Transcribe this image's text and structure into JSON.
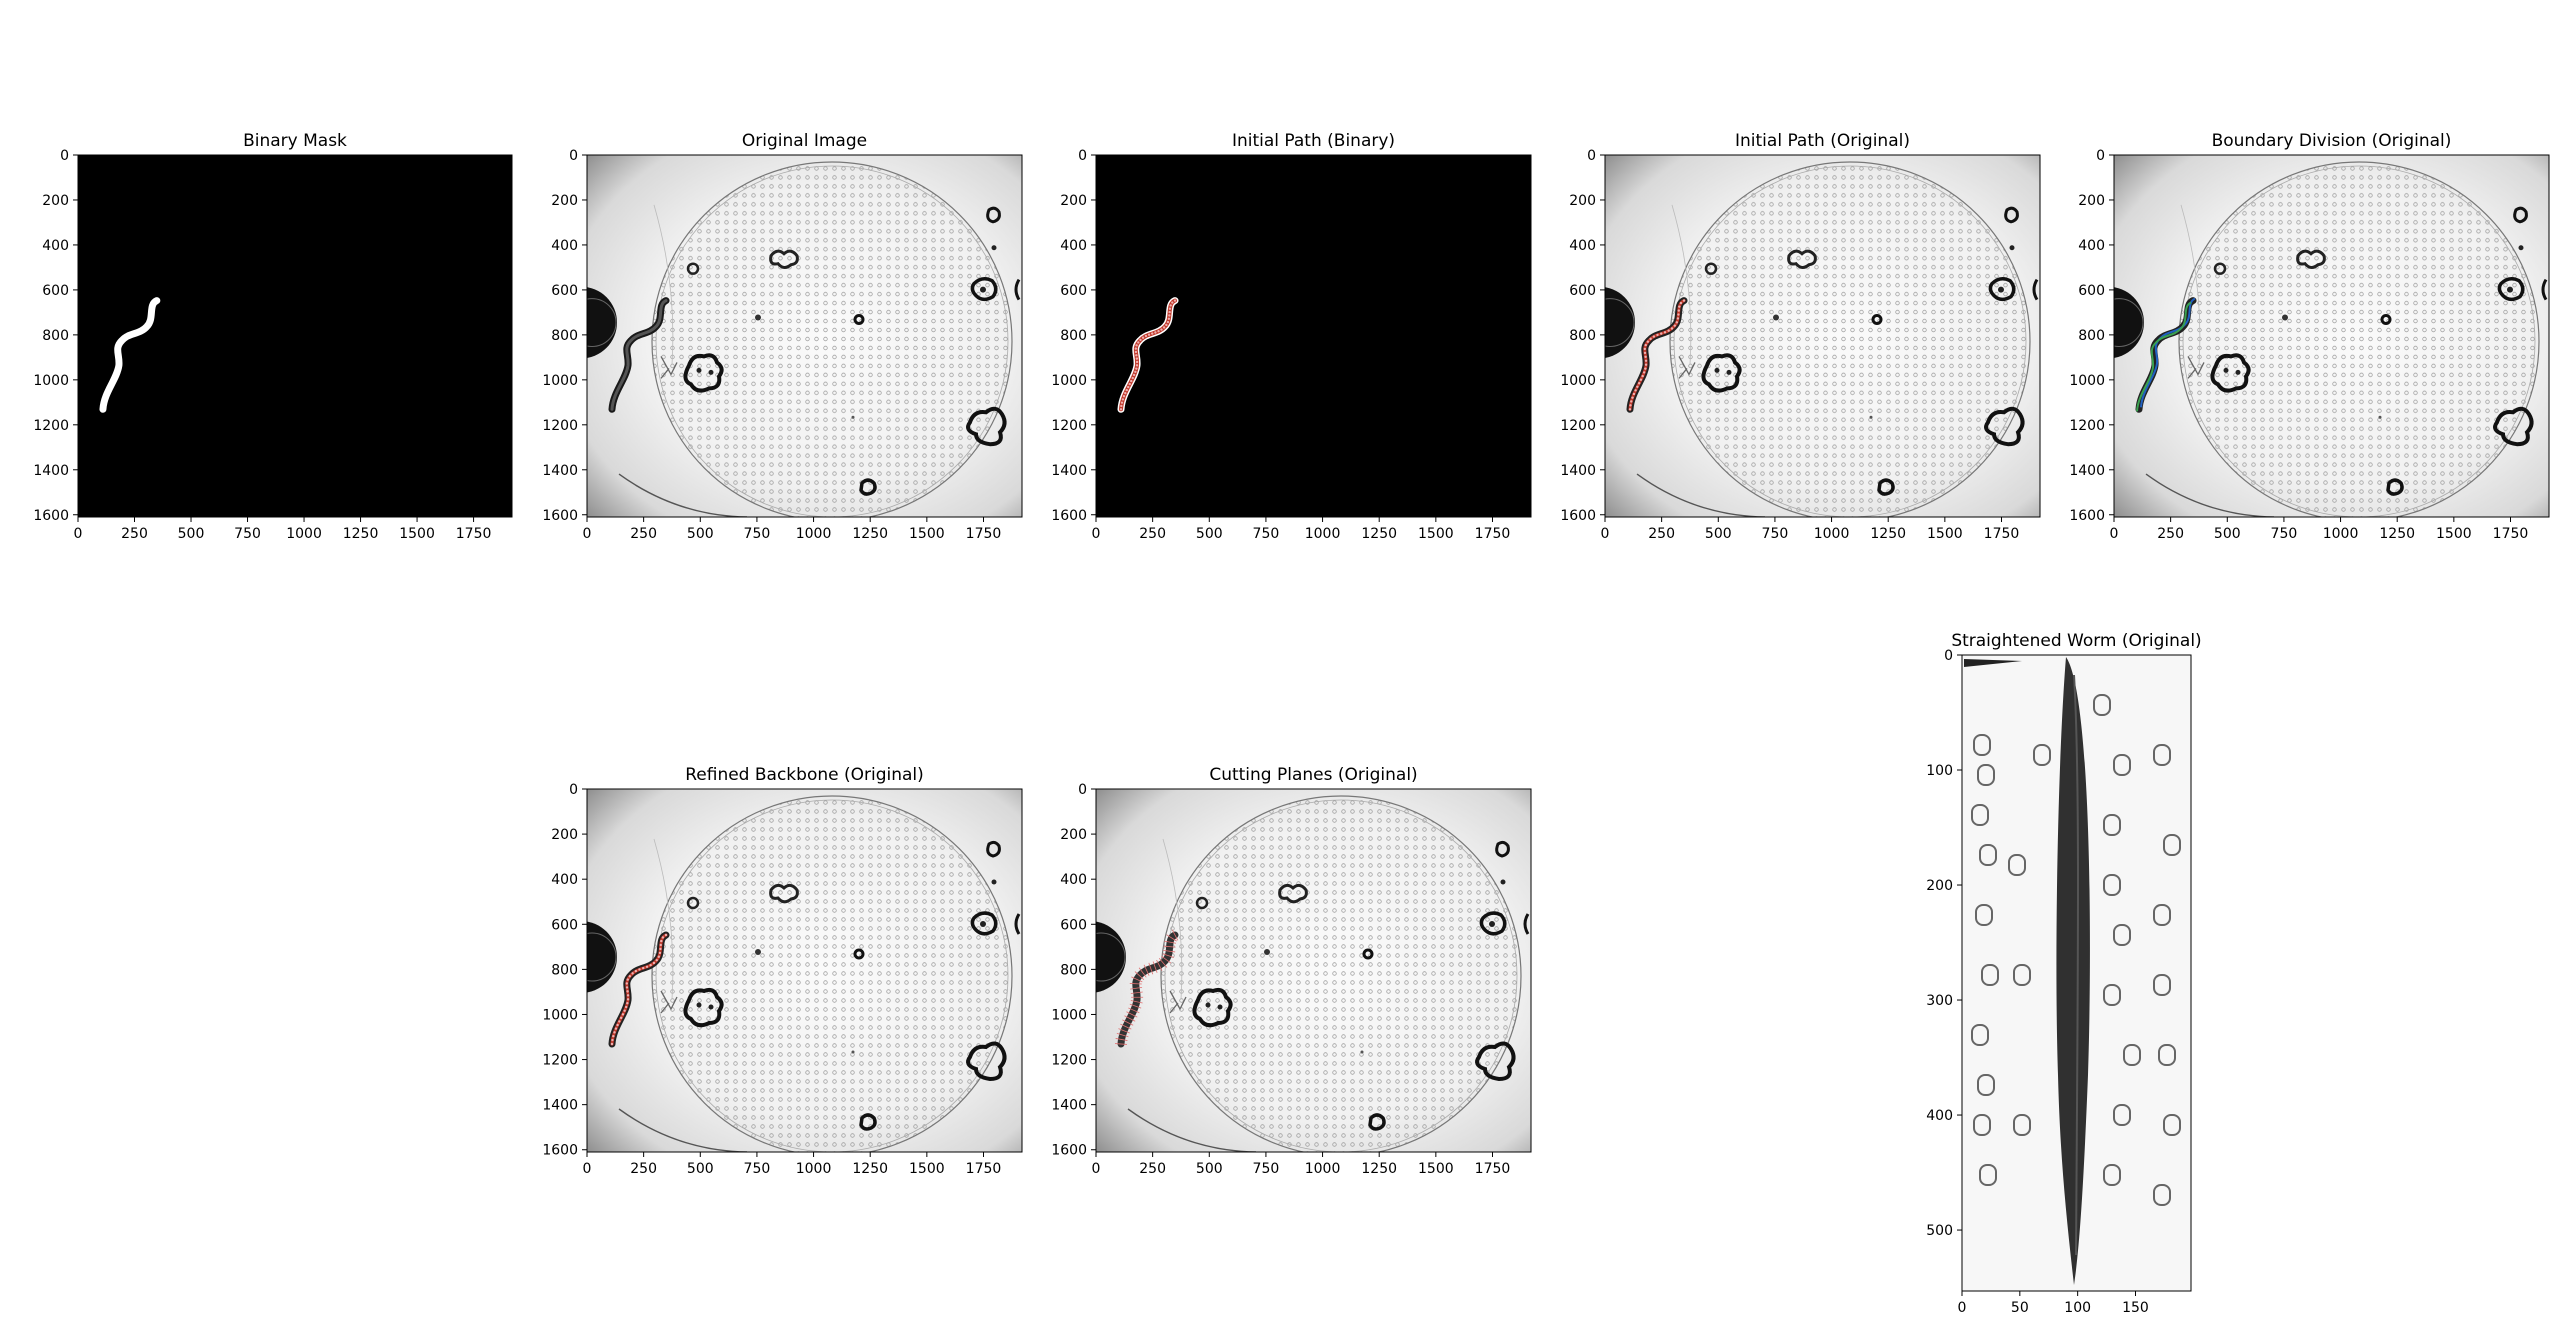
{
  "colors": {
    "background": "#ffffff",
    "mask_bg": "#000000",
    "mask_fg": "#ffffff",
    "plate_bg": "#f3f3f3",
    "plate_vignette": "#8a8a8a",
    "path_red": "#c0392b",
    "path_dots": "#f0b0b0",
    "boundary_blue": "#2060c0",
    "boundary_green": "#3aa050",
    "worm_dark": "#1a1a1a"
  },
  "chart_data": [
    {
      "type": "image",
      "title": "Binary Mask",
      "content": "binary-mask",
      "xticks": [
        "0",
        "250",
        "500",
        "750",
        "1000",
        "1250",
        "1500",
        "1750"
      ],
      "xtick_values": [
        0,
        250,
        500,
        750,
        1000,
        1250,
        1500,
        1750
      ],
      "yticks": [
        "0",
        "200",
        "400",
        "600",
        "800",
        "1000",
        "1200",
        "1400",
        "1600"
      ],
      "ytick_values": [
        0,
        200,
        400,
        600,
        800,
        1000,
        1200,
        1400,
        1600
      ],
      "xlim": [
        0,
        1920
      ],
      "ylim": [
        1610,
        0
      ]
    },
    {
      "type": "image",
      "title": "Original Image",
      "content": "plate",
      "xticks": [
        "0",
        "250",
        "500",
        "750",
        "1000",
        "1250",
        "1500",
        "1750"
      ],
      "xtick_values": [
        0,
        250,
        500,
        750,
        1000,
        1250,
        1500,
        1750
      ],
      "yticks": [
        "0",
        "200",
        "400",
        "600",
        "800",
        "1000",
        "1200",
        "1400",
        "1600"
      ],
      "ytick_values": [
        0,
        200,
        400,
        600,
        800,
        1000,
        1200,
        1400,
        1600
      ],
      "xlim": [
        0,
        1920
      ],
      "ylim": [
        1610,
        0
      ]
    },
    {
      "type": "image",
      "title": "Initial Path (Binary)",
      "content": "binary-path",
      "xticks": [
        "0",
        "250",
        "500",
        "750",
        "1000",
        "1250",
        "1500",
        "1750"
      ],
      "xtick_values": [
        0,
        250,
        500,
        750,
        1000,
        1250,
        1500,
        1750
      ],
      "yticks": [
        "0",
        "200",
        "400",
        "600",
        "800",
        "1000",
        "1200",
        "1400",
        "1600"
      ],
      "ytick_values": [
        0,
        200,
        400,
        600,
        800,
        1000,
        1200,
        1400,
        1600
      ],
      "xlim": [
        0,
        1920
      ],
      "ylim": [
        1610,
        0
      ]
    },
    {
      "type": "image",
      "title": "Initial Path (Original)",
      "content": "plate-path",
      "xticks": [
        "0",
        "250",
        "500",
        "750",
        "1000",
        "1250",
        "1500",
        "1750"
      ],
      "xtick_values": [
        0,
        250,
        500,
        750,
        1000,
        1250,
        1500,
        1750
      ],
      "yticks": [
        "0",
        "200",
        "400",
        "600",
        "800",
        "1000",
        "1200",
        "1400",
        "1600"
      ],
      "ytick_values": [
        0,
        200,
        400,
        600,
        800,
        1000,
        1200,
        1400,
        1600
      ],
      "xlim": [
        0,
        1920
      ],
      "ylim": [
        1610,
        0
      ]
    },
    {
      "type": "image",
      "title": "Boundary Division (Original)",
      "content": "plate-boundary",
      "xticks": [
        "0",
        "250",
        "500",
        "750",
        "1000",
        "1250",
        "1500",
        "1750"
      ],
      "xtick_values": [
        0,
        250,
        500,
        750,
        1000,
        1250,
        1500,
        1750
      ],
      "yticks": [
        "0",
        "200",
        "400",
        "600",
        "800",
        "1000",
        "1200",
        "1400",
        "1600"
      ],
      "ytick_values": [
        0,
        200,
        400,
        600,
        800,
        1000,
        1200,
        1400,
        1600
      ],
      "xlim": [
        0,
        1920
      ],
      "ylim": [
        1610,
        0
      ]
    },
    {
      "type": "image",
      "title": "Refined Backbone (Original)",
      "content": "plate-backbone",
      "xticks": [
        "0",
        "250",
        "500",
        "750",
        "1000",
        "1250",
        "1500",
        "1750"
      ],
      "xtick_values": [
        0,
        250,
        500,
        750,
        1000,
        1250,
        1500,
        1750
      ],
      "yticks": [
        "0",
        "200",
        "400",
        "600",
        "800",
        "1000",
        "1200",
        "1400",
        "1600"
      ],
      "ytick_values": [
        0,
        200,
        400,
        600,
        800,
        1000,
        1200,
        1400,
        1600
      ],
      "xlim": [
        0,
        1920
      ],
      "ylim": [
        1610,
        0
      ]
    },
    {
      "type": "image",
      "title": "Cutting Planes (Original)",
      "content": "plate-planes",
      "xticks": [
        "0",
        "250",
        "500",
        "750",
        "1000",
        "1250",
        "1500",
        "1750"
      ],
      "xtick_values": [
        0,
        250,
        500,
        750,
        1000,
        1250,
        1500,
        1750
      ],
      "yticks": [
        "0",
        "200",
        "400",
        "600",
        "800",
        "1000",
        "1200",
        "1400",
        "1600"
      ],
      "ytick_values": [
        0,
        200,
        400,
        600,
        800,
        1000,
        1200,
        1400,
        1600
      ],
      "xlim": [
        0,
        1920
      ],
      "ylim": [
        1610,
        0
      ]
    },
    {
      "type": "image",
      "title": "Straightened Worm (Original)",
      "content": "straightened",
      "xticks": [
        "0",
        "50",
        "100",
        "150"
      ],
      "xtick_values": [
        0,
        50,
        100,
        150
      ],
      "yticks": [
        "0",
        "100",
        "200",
        "300",
        "400",
        "500"
      ],
      "ytick_values": [
        0,
        100,
        200,
        300,
        400,
        500
      ],
      "xlim": [
        0,
        198
      ],
      "ylim": [
        553,
        0
      ]
    }
  ]
}
